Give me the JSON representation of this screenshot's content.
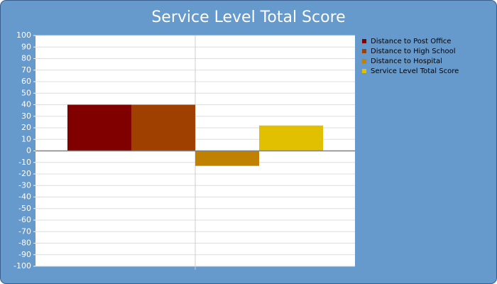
{
  "chart_data": {
    "type": "bar",
    "title": "Service Level Total Score",
    "categories": [
      null
    ],
    "series": [
      {
        "name": "Distance to Post Office",
        "color": "#800000",
        "values": [
          40
        ]
      },
      {
        "name": "Distance to High School",
        "color": "#a04000",
        "values": [
          40
        ]
      },
      {
        "name": "Distance to Hospital",
        "color": "#c08000",
        "values": [
          -13
        ]
      },
      {
        "name": "Service Level Total Score",
        "color": "#e0c000",
        "values": [
          22
        ]
      }
    ],
    "ylim": [
      -100,
      100
    ],
    "yticks": [
      -100,
      -90,
      -80,
      -70,
      -60,
      -50,
      -40,
      -30,
      -20,
      -10,
      0,
      10,
      20,
      30,
      40,
      50,
      60,
      70,
      80,
      90,
      100
    ],
    "grid": true,
    "legend": "right"
  }
}
